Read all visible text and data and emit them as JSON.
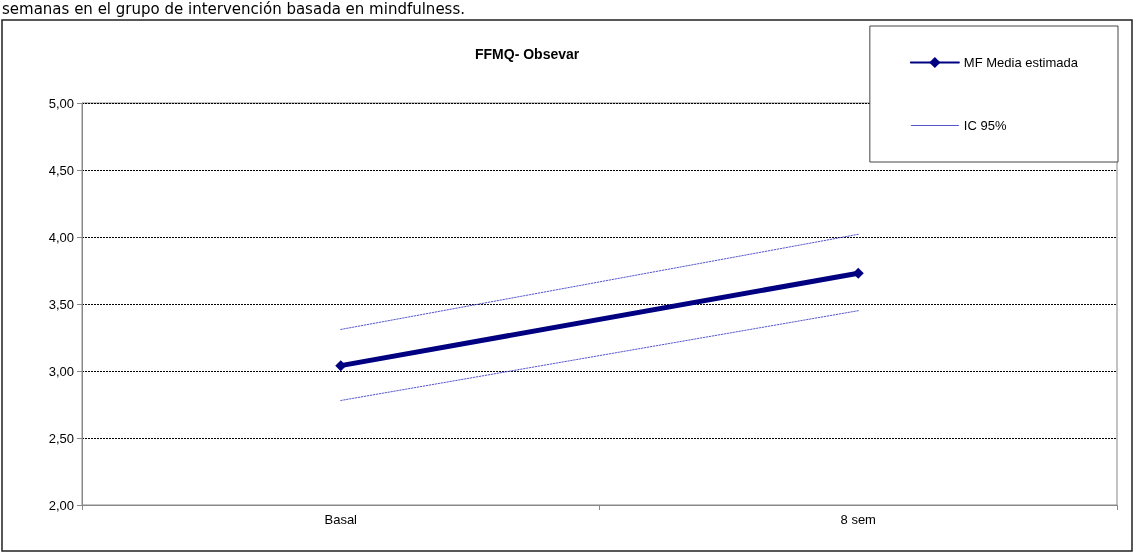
{
  "chart_data": {
    "type": "line",
    "title": "FFMQ- Obsevar",
    "annotations": [
      "semanas en el grupo de intervención basada en mindfulness."
    ],
    "categories": [
      "Basal",
      "8 sem"
    ],
    "series": [
      {
        "name": "MF Media estimada",
        "color": "#000080",
        "values": [
          3.04,
          3.73
        ],
        "marker": "diamond",
        "line_style": "solid"
      },
      {
        "name": "IC 95%",
        "color": "#5555cc",
        "values": [
          3.31,
          4.02
        ],
        "marker": "none",
        "line_style": "dotted"
      },
      {
        "color": "#5656cd",
        "values": [
          2.78,
          3.45
        ],
        "marker": "none",
        "line_style": "dotted"
      }
    ],
    "ylim": [
      2,
      5
    ],
    "yticks": [
      {
        "value": 2,
        "label": "2,00"
      },
      {
        "value": 2.5,
        "label": "2,50"
      },
      {
        "value": 3,
        "label": "3,00"
      },
      {
        "value": 3.5,
        "label": "3,50"
      },
      {
        "value": 4,
        "label": "4,00"
      },
      {
        "value": 4.5,
        "label": "4,50"
      },
      {
        "value": 5,
        "label": "5,00"
      }
    ],
    "grid": "y",
    "legend": "top right"
  }
}
